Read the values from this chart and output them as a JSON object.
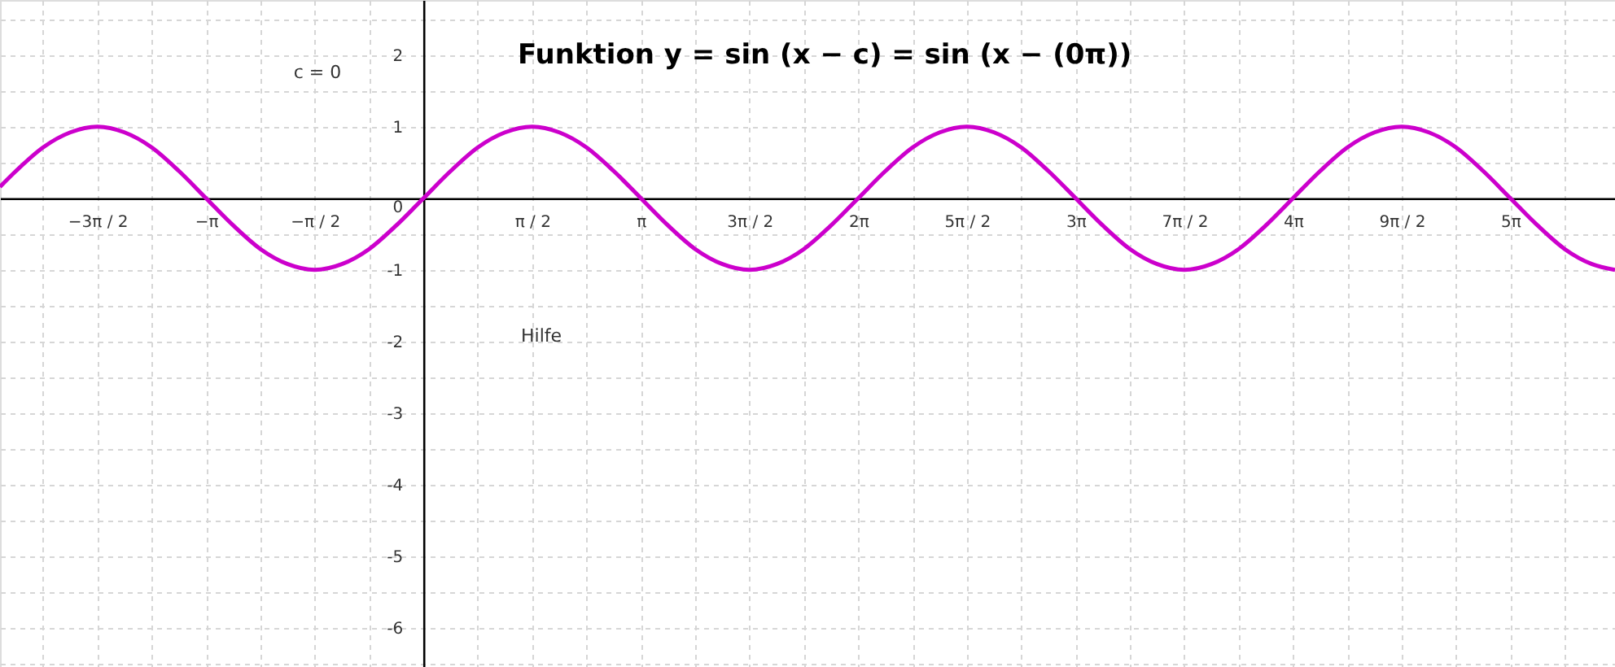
{
  "chart_data": {
    "type": "line",
    "title": "Funktion  y = sin (x − c) = sin (x − (0π))",
    "annotations": [
      "c = 0",
      "Hilfe"
    ],
    "x": [
      -6.12,
      -5.89,
      -5.498,
      -5.105,
      -4.712,
      -4.32,
      -3.927,
      -3.534,
      -3.142,
      -2.749,
      -2.356,
      -1.963,
      -1.571,
      -1.178,
      -0.785,
      -0.393,
      0,
      0.393,
      0.785,
      1.178,
      1.571,
      1.963,
      2.356,
      2.749,
      3.142,
      3.534,
      3.927,
      4.32,
      4.712,
      5.105,
      5.498,
      5.89,
      6.283,
      6.676,
      7.069,
      7.461,
      7.854,
      8.247,
      8.639,
      9.032,
      9.425,
      9.817,
      10.21,
      10.603,
      10.996,
      11.388,
      11.781,
      12.174,
      12.566,
      12.959,
      13.352,
      13.744,
      14.137,
      14.53,
      14.923,
      15.315,
      15.708,
      16.101,
      16.493,
      16.886,
      17.22
    ],
    "series": [
      {
        "color": "#cc00cc",
        "values": [
          0.16,
          0.38,
          0.71,
          0.92,
          1,
          0.92,
          0.71,
          0.38,
          0,
          -0.38,
          -0.71,
          -0.92,
          -1,
          -0.92,
          -0.71,
          -0.38,
          0,
          0.38,
          0.71,
          0.92,
          1,
          0.92,
          0.71,
          0.38,
          0,
          -0.38,
          -0.71,
          -0.92,
          -1,
          -0.92,
          -0.71,
          -0.38,
          0,
          0.38,
          0.71,
          0.92,
          1,
          0.92,
          0.71,
          0.38,
          0,
          -0.38,
          -0.71,
          -0.92,
          -1,
          -0.92,
          -0.71,
          -0.38,
          0,
          0.38,
          0.71,
          0.92,
          1,
          0.92,
          0.71,
          0.38,
          0,
          -0.38,
          -0.71,
          -0.92,
          -1
        ]
      }
    ],
    "xlim": [
      -6.12,
      17.22
    ],
    "ylim": [
      -6.55,
      2.77
    ],
    "xticks": [
      {
        "value": -5.498,
        "label": null
      },
      {
        "value": -4.712,
        "label": "−3π / 2"
      },
      {
        "value": -3.927,
        "label": null
      },
      {
        "value": -3.142,
        "label": "−π"
      },
      {
        "value": -2.356,
        "label": null
      },
      {
        "value": -1.571,
        "label": "−π / 2"
      },
      {
        "value": -0.785,
        "label": null
      },
      {
        "value": 0.785,
        "label": null
      },
      {
        "value": 1.571,
        "label": "π / 2"
      },
      {
        "value": 2.356,
        "label": null
      },
      {
        "value": 3.142,
        "label": "π"
      },
      {
        "value": 3.927,
        "label": null
      },
      {
        "value": 4.712,
        "label": "3π / 2"
      },
      {
        "value": 5.498,
        "label": null
      },
      {
        "value": 6.283,
        "label": "2π"
      },
      {
        "value": 7.069,
        "label": null
      },
      {
        "value": 7.854,
        "label": "5π / 2"
      },
      {
        "value": 8.639,
        "label": null
      },
      {
        "value": 9.425,
        "label": "3π"
      },
      {
        "value": 10.21,
        "label": null
      },
      {
        "value": 10.996,
        "label": "7π / 2"
      },
      {
        "value": 11.781,
        "label": null
      },
      {
        "value": 12.566,
        "label": "4π"
      },
      {
        "value": 13.352,
        "label": null
      },
      {
        "value": 14.137,
        "label": "9π / 2"
      },
      {
        "value": 14.923,
        "label": null
      },
      {
        "value": 15.708,
        "label": "5π"
      },
      {
        "value": 16.493,
        "label": null
      }
    ],
    "yticks": [
      {
        "value": -6.5,
        "label": null
      },
      -6,
      {
        "value": -5.5,
        "label": null
      },
      -5,
      {
        "value": -4.5,
        "label": null
      },
      -4,
      {
        "value": -3.5,
        "label": null
      },
      -3,
      {
        "value": -2.5,
        "label": null
      },
      -2,
      {
        "value": -1.5,
        "label": null
      },
      -1,
      {
        "value": -0.5,
        "label": null
      },
      0,
      {
        "value": 0.5,
        "label": null
      },
      1,
      {
        "value": 1.5,
        "label": null
      },
      2,
      {
        "value": 2.5,
        "label": null
      }
    ],
    "grid": true,
    "line_style": "solid",
    "marker": "none"
  }
}
